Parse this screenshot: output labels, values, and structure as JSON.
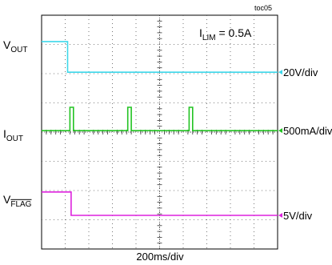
{
  "chart_data": {
    "type": "line",
    "figure_id": "toc05",
    "annotation": {
      "base": "I",
      "sub": "LIM",
      "rest": " = 0.5A"
    },
    "xlabel": "200ms/div",
    "grid": true,
    "divisions": {
      "x": 10,
      "y": 8
    },
    "channels": [
      {
        "key": "vout",
        "label": {
          "base": "V",
          "sub": "OUT",
          "overline": false
        },
        "scale": "20V/div",
        "color": "#3ed8ea",
        "x": [
          0,
          1.1,
          1.1,
          10
        ],
        "y": [
          -0.9,
          -0.9,
          -1.95,
          -1.95
        ]
      },
      {
        "key": "iout",
        "label": {
          "base": "I",
          "sub": "OUT",
          "overline": false
        },
        "scale": "500mA/div",
        "color": "#22c322",
        "x": [
          0,
          1.15,
          1.2,
          1.2,
          1.35,
          1.35,
          1.4,
          3.6,
          3.65,
          3.65,
          3.8,
          3.8,
          3.85,
          6.2,
          6.25,
          6.25,
          6.4,
          6.4,
          6.45,
          10
        ],
        "y": [
          -3.95,
          -3.95,
          -3.95,
          -3.15,
          -3.15,
          -3.95,
          -3.95,
          -3.95,
          -3.95,
          -3.15,
          -3.15,
          -3.95,
          -3.95,
          -3.95,
          -3.95,
          -3.15,
          -3.15,
          -3.95,
          -3.95,
          -3.95
        ]
      },
      {
        "key": "vflag",
        "label": {
          "base": "V",
          "sub": "FLAG",
          "overline": true
        },
        "scale": "5V/div",
        "color": "#dd22dd",
        "x": [
          0,
          1.25,
          1.25,
          10
        ],
        "y": [
          -6.05,
          -6.05,
          -6.85,
          -6.85
        ]
      }
    ]
  }
}
